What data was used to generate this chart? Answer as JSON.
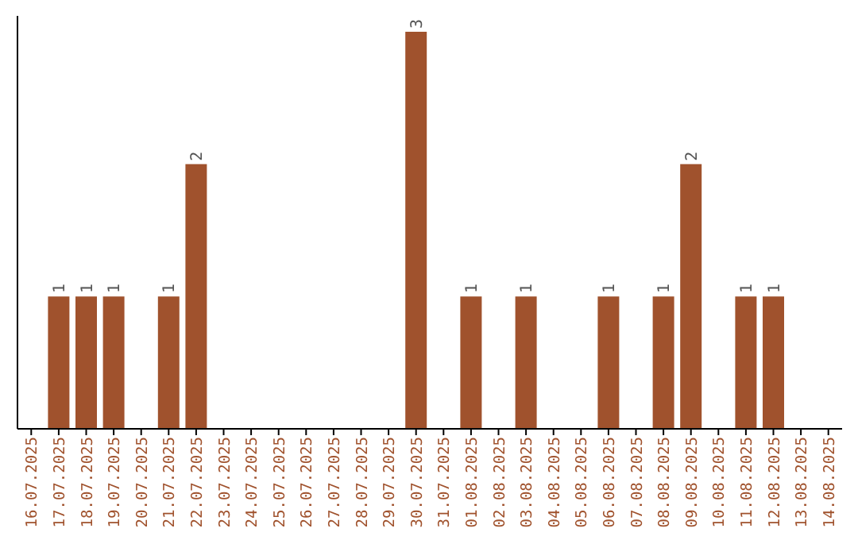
{
  "chart_data": {
    "type": "bar",
    "categories": [
      "16.07.2025",
      "17.07.2025",
      "18.07.2025",
      "19.07.2025",
      "20.07.2025",
      "21.07.2025",
      "22.07.2025",
      "23.07.2025",
      "24.07.2025",
      "25.07.2025",
      "26.07.2025",
      "27.07.2025",
      "28.07.2025",
      "29.07.2025",
      "30.07.2025",
      "31.07.2025",
      "01.08.2025",
      "02.08.2025",
      "03.08.2025",
      "04.08.2025",
      "05.08.2025",
      "06.08.2025",
      "07.08.2025",
      "08.08.2025",
      "09.08.2025",
      "10.08.2025",
      "11.08.2025",
      "12.08.2025",
      "13.08.2025",
      "14.08.2025"
    ],
    "values": [
      0,
      1,
      1,
      1,
      0,
      1,
      2,
      0,
      0,
      0,
      0,
      0,
      0,
      0,
      3,
      0,
      1,
      0,
      1,
      0,
      0,
      1,
      0,
      1,
      2,
      0,
      1,
      1,
      0,
      0
    ],
    "value_labels": [
      null,
      "1",
      "1",
      "1",
      null,
      "1",
      "2",
      null,
      null,
      null,
      null,
      null,
      null,
      null,
      "3",
      null,
      "1",
      null,
      "1",
      null,
      null,
      "1",
      null,
      "1",
      "2",
      null,
      "1",
      "1",
      null,
      null
    ],
    "color": "#a0522d",
    "grid": false
  }
}
